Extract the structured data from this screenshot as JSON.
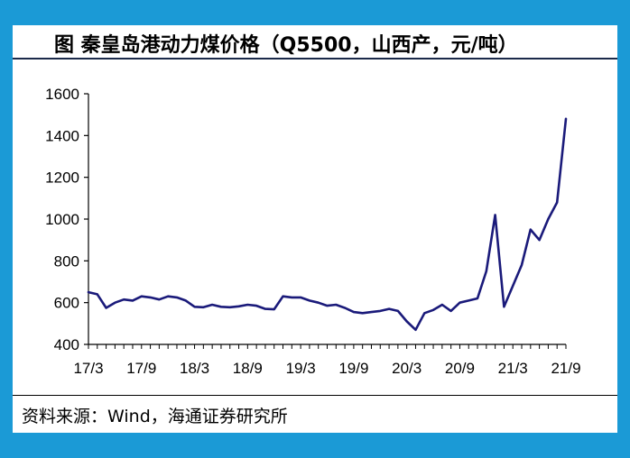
{
  "title": "图  秦皇岛港动力煤价格（Q5500，山西产，元/吨）",
  "source": "资料来源：Wind，海通证券研究所",
  "colors": {
    "background": "#1b9ad6",
    "line": "#1a1a7a",
    "panel": "#ffffff"
  },
  "chart_data": {
    "type": "line",
    "title": "秦皇岛港动力煤价格（Q5500，山西产，元/吨）",
    "xlabel": "",
    "ylabel": "",
    "ylim": [
      400,
      1600
    ],
    "yticks": [
      400,
      600,
      800,
      1000,
      1200,
      1400,
      1600
    ],
    "xtick_labels": [
      "17/3",
      "17/9",
      "18/3",
      "18/9",
      "19/3",
      "19/9",
      "20/3",
      "20/9",
      "21/3",
      "21/9"
    ],
    "grid": false,
    "series": [
      {
        "values": [
          [
            "17/3",
            650
          ],
          [
            "17/4",
            640
          ],
          [
            "17/5",
            575
          ],
          [
            "17/6",
            600
          ],
          [
            "17/7",
            615
          ],
          [
            "17/8",
            610
          ],
          [
            "17/9",
            630
          ],
          [
            "17/10",
            625
          ],
          [
            "17/11",
            615
          ],
          [
            "17/12",
            630
          ],
          [
            "18/1",
            625
          ],
          [
            "18/2",
            610
          ],
          [
            "18/3",
            580
          ],
          [
            "18/4",
            578
          ],
          [
            "18/5",
            590
          ],
          [
            "18/6",
            580
          ],
          [
            "18/7",
            578
          ],
          [
            "18/8",
            582
          ],
          [
            "18/9",
            590
          ],
          [
            "18/10",
            585
          ],
          [
            "18/11",
            570
          ],
          [
            "18/12",
            568
          ],
          [
            "19/1",
            630
          ],
          [
            "19/2",
            625
          ],
          [
            "19/3",
            625
          ],
          [
            "19/4",
            610
          ],
          [
            "19/5",
            600
          ],
          [
            "19/6",
            585
          ],
          [
            "19/7",
            590
          ],
          [
            "19/8",
            575
          ],
          [
            "19/9",
            555
          ],
          [
            "19/10",
            550
          ],
          [
            "19/11",
            555
          ],
          [
            "19/12",
            560
          ],
          [
            "20/1",
            570
          ],
          [
            "20/2",
            560
          ],
          [
            "20/3",
            510
          ],
          [
            "20/4",
            470
          ],
          [
            "20/5",
            550
          ],
          [
            "20/6",
            565
          ],
          [
            "20/7",
            590
          ],
          [
            "20/8",
            560
          ],
          [
            "20/9",
            600
          ],
          [
            "20/10",
            610
          ],
          [
            "20/11",
            620
          ],
          [
            "20/12",
            750
          ],
          [
            "21/1",
            1020
          ],
          [
            "21/2",
            580
          ],
          [
            "21/3",
            680
          ],
          [
            "21/4",
            780
          ],
          [
            "21/5",
            950
          ],
          [
            "21/6",
            900
          ],
          [
            "21/7",
            1000
          ],
          [
            "21/8",
            1080
          ],
          [
            "21/9",
            1480
          ]
        ]
      }
    ]
  }
}
